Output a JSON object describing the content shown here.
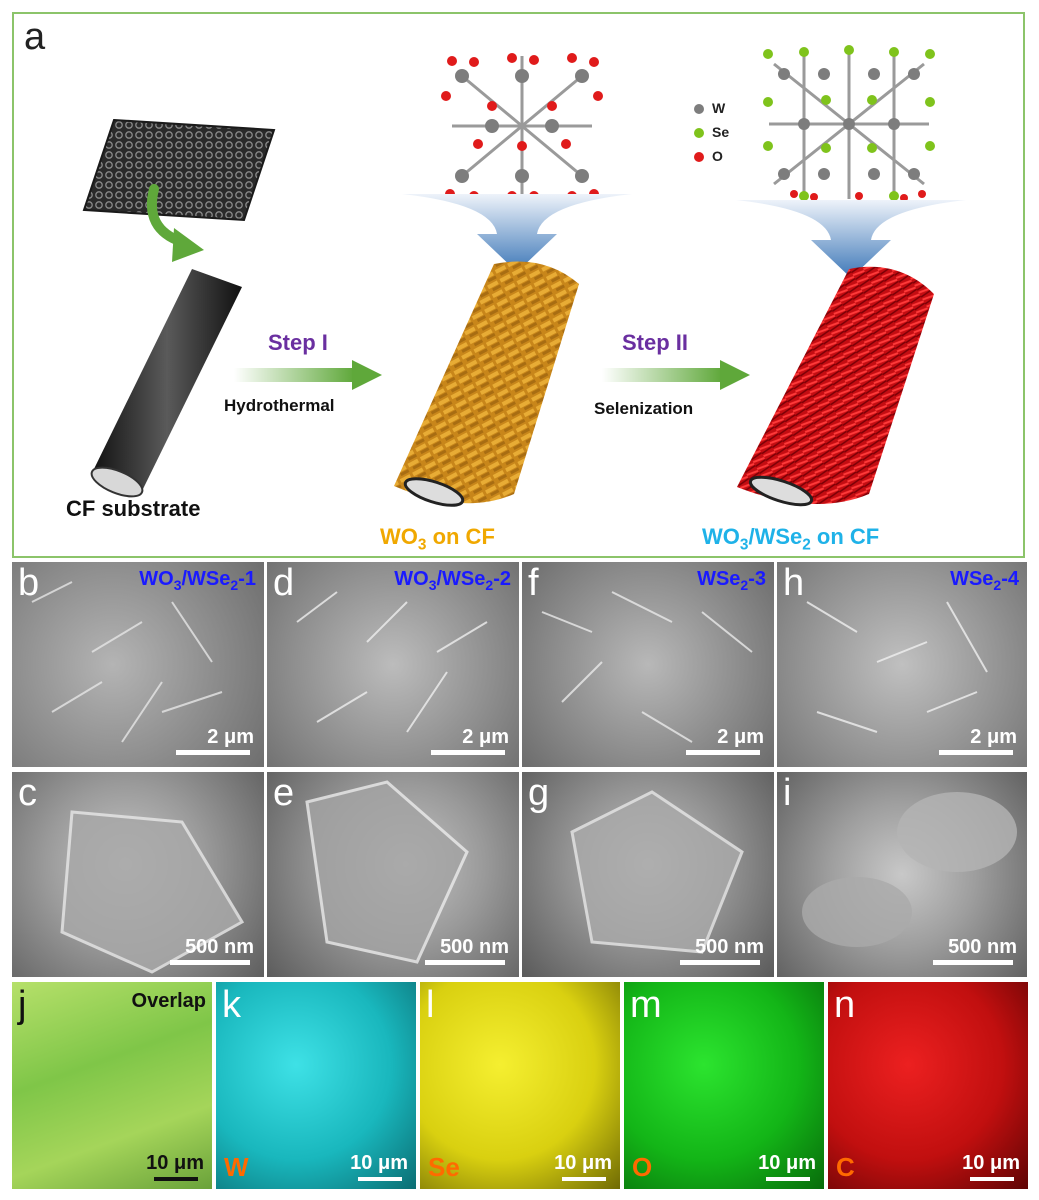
{
  "panel_a": {
    "letter": "a",
    "substrate_label": "CF substrate",
    "step1": {
      "title": "Step I",
      "process": "Hydrothermal"
    },
    "step2": {
      "title": "Step II",
      "process": "Selenization"
    },
    "wo3_label": {
      "main": "WO",
      "sub": "3",
      "rest": " on CF"
    },
    "hetero_label": {
      "a": "WO",
      "a_sub": "3",
      "b": "/WSe",
      "b_sub": "2",
      "rest": " on CF"
    },
    "legend": [
      {
        "symbol": "W",
        "color": "#7d7d7d"
      },
      {
        "symbol": "Se",
        "color": "#7fc31c"
      },
      {
        "symbol": "O",
        "color": "#e01b1b"
      }
    ],
    "colors": {
      "border": "#8cc46a",
      "wo3": "#d79a1f",
      "hetero": "#e3141b",
      "arrow": "#5fa83a",
      "step": "#6a2fa0",
      "hetero_text": "#1fb2e8",
      "wo3_text": "#f0a800"
    }
  },
  "sem_tiles": [
    {
      "letter": "b",
      "title_a": "WO",
      "title_a_sub": "3",
      "title_b": "/WSe",
      "title_b_sub": "2",
      "title_c": "-1",
      "scale": "2 μm"
    },
    {
      "letter": "d",
      "title_a": "WO",
      "title_a_sub": "3",
      "title_b": "/WSe",
      "title_b_sub": "2",
      "title_c": "-2",
      "scale": "2 μm"
    },
    {
      "letter": "f",
      "title_a": "",
      "title_a_sub": "",
      "title_b": "WSe",
      "title_b_sub": "2",
      "title_c": "-3",
      "scale": "2 μm"
    },
    {
      "letter": "h",
      "title_a": "",
      "title_a_sub": "",
      "title_b": "WSe",
      "title_b_sub": "2",
      "title_c": "-4",
      "scale": "2 μm"
    },
    {
      "letter": "c",
      "scale": "500 nm"
    },
    {
      "letter": "e",
      "scale": "500 nm"
    },
    {
      "letter": "g",
      "scale": "500 nm"
    },
    {
      "letter": "i",
      "scale": "500 nm"
    }
  ],
  "eds_tiles": [
    {
      "letter": "j",
      "label": "Overlap",
      "element": "",
      "scale": "10 μm",
      "color": "#9ad45a"
    },
    {
      "letter": "k",
      "label": "",
      "element": "W",
      "scale": "10 μm",
      "color": "#19c3c9"
    },
    {
      "letter": "l",
      "label": "",
      "element": "Se",
      "scale": "10 μm",
      "color": "#e8e010"
    },
    {
      "letter": "m",
      "label": "",
      "element": "O",
      "scale": "10 μm",
      "color": "#17c51a"
    },
    {
      "letter": "n",
      "label": "",
      "element": "C",
      "scale": "10 μm",
      "color": "#e01414"
    }
  ]
}
